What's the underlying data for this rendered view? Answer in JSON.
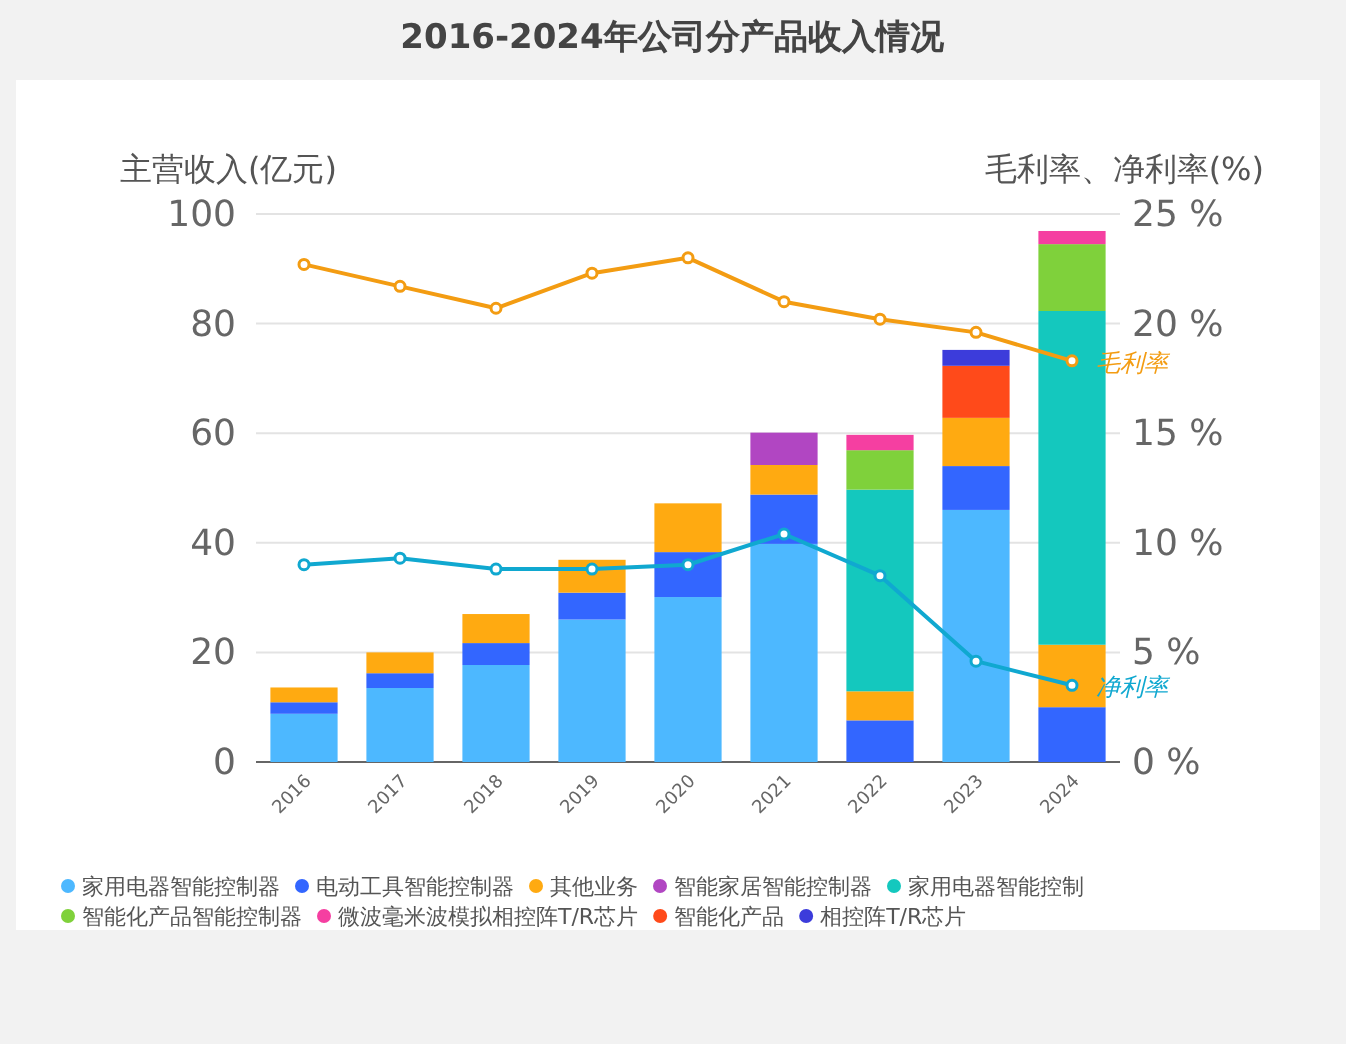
{
  "chart_data": {
    "type": "bar",
    "title": "2016-2024年公司分产品收入情况",
    "ylabel": "主营收入(亿元)",
    "y2label": "毛利率、净利率(%)",
    "categories": [
      "2016",
      "2017",
      "2018",
      "2019",
      "2020",
      "2021",
      "2022",
      "2023",
      "2024"
    ],
    "stacked": true,
    "grid": "y",
    "legend": "bottom",
    "marker": "circle",
    "ylim": [
      0,
      100
    ],
    "yticks": [
      0,
      20,
      40,
      60,
      80,
      100
    ],
    "y2lim": [
      0,
      25
    ],
    "y2ticks": [
      {
        "value": 0,
        "label": "0 %"
      },
      {
        "value": 5,
        "label": "5 %"
      },
      {
        "value": 10,
        "label": "10 %"
      },
      {
        "value": 15,
        "label": "15 %"
      },
      {
        "value": 20,
        "label": "20 %"
      },
      {
        "value": 25,
        "label": "25 %"
      }
    ],
    "series": [
      {
        "name": "家用电器智能控制器",
        "color": "#4db8ff",
        "values": [
          8.8,
          13.5,
          17.7,
          26.0,
          30.1,
          39.8,
          null,
          46.0,
          null
        ]
      },
      {
        "name": "电动工具智能控制器",
        "color": "#3366ff",
        "values": [
          2.1,
          2.7,
          4.0,
          4.9,
          8.2,
          9.0,
          7.6,
          8.0,
          10.0
        ]
      },
      {
        "name": "其他业务",
        "color": "#ffaa11",
        "values": [
          2.7,
          3.8,
          5.3,
          6.0,
          8.9,
          5.4,
          5.3,
          8.8,
          11.4
        ]
      },
      {
        "name": "智能家居智能控制器",
        "color": "#b146c2",
        "values": [
          null,
          null,
          null,
          null,
          null,
          5.9,
          null,
          null,
          null
        ]
      },
      {
        "name": "家用电器智能控制",
        "color": "#14c8be",
        "values": [
          null,
          null,
          null,
          null,
          null,
          null,
          36.8,
          null,
          60.9
        ]
      },
      {
        "name": "智能化产品智能控制器",
        "color": "#7fd13b",
        "values": [
          null,
          null,
          null,
          null,
          null,
          null,
          7.2,
          null,
          12.2
        ]
      },
      {
        "name": "微波毫米波模拟相控阵T/R芯片",
        "color": "#f53fa1",
        "values": [
          null,
          null,
          null,
          null,
          null,
          null,
          2.8,
          null,
          2.4
        ]
      },
      {
        "name": "智能化产品",
        "color": "#ff4a1a",
        "values": [
          null,
          null,
          null,
          null,
          null,
          null,
          null,
          9.5,
          null
        ]
      },
      {
        "name": "相控阵T/R芯片",
        "color": "#3c3cdb",
        "values": [
          null,
          null,
          null,
          null,
          null,
          null,
          null,
          2.9,
          null
        ]
      },
      {
        "name": "毛利率",
        "type": "line",
        "axis": "y2",
        "color": "#f39c12",
        "values": [
          22.7,
          21.7,
          20.7,
          22.3,
          23.0,
          21.0,
          20.2,
          19.6,
          18.3
        ]
      },
      {
        "name": "净利率",
        "type": "line",
        "axis": "y2",
        "color": "#10a8d0",
        "values": [
          9.0,
          9.3,
          8.8,
          8.8,
          9.0,
          10.4,
          8.5,
          4.6,
          3.5
        ]
      }
    ]
  }
}
